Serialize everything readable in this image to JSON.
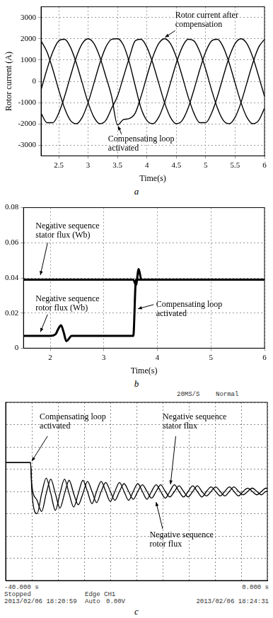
{
  "chart_data": [
    {
      "type": "line",
      "label": "a",
      "x_label": "Time(s)",
      "y_label": "Rotor current (A)",
      "x": [
        2.2,
        2.3,
        2.4,
        2.5,
        2.6,
        2.7,
        2.8,
        2.9,
        3,
        3.1,
        3.2,
        3.3,
        3.4,
        3.5,
        3.6,
        3.7,
        3.8,
        3.9,
        4,
        4.1,
        4.2,
        4.3,
        4.4,
        4.5,
        4.6,
        4.7,
        4.8,
        4.9,
        5,
        5.1,
        5.2,
        5.3,
        5.4,
        5.5,
        5.6,
        5.7,
        5.8,
        5.9,
        6
      ],
      "xlim": [
        2.2,
        6
      ],
      "xticks": [
        2.5,
        3,
        3.5,
        4,
        4.5,
        5,
        5.5,
        6
      ],
      "ylim": [
        -3500,
        3500
      ],
      "yticks": [
        -3000,
        -2000,
        -1000,
        0,
        1000,
        2000,
        3000
      ],
      "grid": true,
      "series": [
        {
          "color": "#000000",
          "values": [
            -1498,
            -1942,
            -1942,
            -1496,
            -710,
            240,
            1136,
            1770,
            2000,
            1770,
            1136,
            240,
            -710,
            -2050,
            -1800,
            -1750,
            -1500,
            -710,
            240,
            1136,
            1770,
            2000,
            1770,
            1136,
            240,
            -710,
            -1498,
            -1942,
            -1942,
            -1496,
            -710,
            240,
            1136,
            1770,
            2000,
            1770,
            1136,
            240,
            -710
          ]
        },
        {
          "color": "#000000",
          "values": [
            -398,
            558,
            1386,
            1898,
            1974,
            1600,
            858,
            -80,
            -1000,
            -1690,
            -1994,
            -1840,
            -1264,
            -700,
            200,
            1100,
            1898,
            1974,
            1600,
            858,
            -80,
            -1000,
            -1690,
            -1994,
            -1840,
            -1264,
            -398,
            558,
            1386,
            1898,
            1974,
            1600,
            858,
            -80,
            -1000,
            -1690,
            -1994,
            -1840,
            -1264
          ]
        },
        {
          "color": "#000000",
          "values": [
            1896,
            1384,
            556,
            -402,
            -1264,
            -1840,
            -1994,
            -1690,
            -1000,
            -80,
            858,
            1600,
            1974,
            2000,
            1700,
            900,
            -200,
            -1264,
            -1840,
            -1994,
            -1690,
            -1000,
            -80,
            858,
            1600,
            1974,
            1896,
            1384,
            556,
            -402,
            -1264,
            -1840,
            -1994,
            -1690,
            -1000,
            -80,
            858,
            1600,
            1974
          ]
        }
      ],
      "annotations": [
        "Rotor current after compensation",
        "Compensating loop activated"
      ]
    },
    {
      "type": "line",
      "label": "b",
      "x_label": "Time(s)",
      "x": [
        1.5,
        2.0,
        2.1,
        2.15,
        2.2,
        2.25,
        2.3,
        2.4,
        3.0,
        3.5,
        3.55,
        3.6,
        3.65,
        3.7,
        3.8,
        4.0,
        5.0,
        6.0
      ],
      "xlim": [
        1.5,
        6
      ],
      "xticks": [
        2,
        3,
        4,
        5,
        6
      ],
      "ylim": [
        0,
        0.08
      ],
      "yticks": [
        0,
        0.02,
        0.04,
        0.06,
        0.08
      ],
      "grid": true,
      "series": [
        {
          "color": "#000000",
          "values": [
            0.039,
            0.039,
            0.039,
            0.039,
            0.039,
            0.039,
            0.039,
            0.039,
            0.039,
            0.039,
            0.039,
            0.036,
            0.045,
            0.039,
            0.039,
            0.039,
            0.039,
            0.039
          ]
        },
        {
          "color": "#000000",
          "values": [
            0.007,
            0.007,
            0.008,
            0.011,
            0.013,
            0.009,
            0.004,
            0.007,
            0.007,
            0.007,
            0.007,
            0.039,
            0.039,
            0.039,
            0.039,
            0.039,
            0.039,
            0.039
          ]
        }
      ],
      "annotations": [
        "Negative sequence stator flux (Wb)",
        "Negative sequence rotor flux (Wb)",
        "Compensating loop activated"
      ]
    },
    {
      "type": "line",
      "label": "c",
      "x": [
        0,
        0.95,
        1,
        1.2,
        1.375,
        1.55,
        1.725,
        1.9,
        2.075,
        2.25,
        2.425,
        2.6,
        2.775,
        2.95,
        3.125,
        3.3,
        3.475,
        3.65,
        3.825,
        4,
        4.175,
        4.35,
        4.525,
        4.7,
        4.875,
        5.05,
        5.225,
        5.4,
        5.575,
        5.75,
        5.925,
        6.1,
        6.275,
        6.45,
        6.625,
        6.8,
        6.975,
        7.15,
        7.325,
        7.5,
        7.675,
        7.85,
        8.025,
        8.2,
        8.375,
        8.55,
        8.725,
        8.9,
        9.075,
        9.25,
        9.425,
        9.6,
        9.775,
        9.95,
        10
      ],
      "xlim": [
        0,
        10
      ],
      "xticks": [
        0,
        1,
        2,
        3,
        4,
        5,
        6,
        7,
        8,
        9,
        10
      ],
      "ylim": [
        -4,
        4
      ],
      "yticks": [
        -4,
        -3,
        -2,
        -1,
        0,
        1,
        2,
        3,
        4
      ],
      "grid": true,
      "tick_labels": false,
      "series": [
        {
          "color": "#000000",
          "values": [
            1.3,
            1.3,
            0,
            -1,
            -0.1,
            0.6,
            -0.1,
            -0.85,
            -0.1,
            0.55,
            -0.1,
            -0.7,
            -0.1,
            0.5,
            0,
            -0.55,
            0,
            0.45,
            0,
            -0.45,
            0,
            0.4,
            0,
            -0.4,
            0,
            0.35,
            0,
            -0.35,
            0,
            0.3,
            0,
            -0.3,
            0,
            0.3,
            0,
            -0.25,
            0,
            0.25,
            0,
            -0.25,
            0,
            0.2,
            0,
            -0.2,
            0,
            0.2,
            0,
            -0.2,
            0,
            0.15,
            0,
            -0.15,
            0,
            0.15,
            0.1
          ]
        },
        {
          "color": "#000000",
          "values": [
            1.3,
            1.3,
            0.3,
            -0.4,
            -0.9,
            -0.1,
            0.55,
            -0.1,
            -0.75,
            -0.1,
            0.5,
            -0.1,
            -0.6,
            -0.1,
            0.45,
            0,
            -0.5,
            0,
            0.4,
            0,
            -0.4,
            0,
            0.35,
            0,
            -0.35,
            0,
            0.3,
            0,
            -0.3,
            0,
            0.3,
            0,
            -0.25,
            0,
            0.25,
            0,
            -0.25,
            0,
            0.25,
            0,
            -0.2,
            0,
            0.2,
            0,
            -0.2,
            0,
            0.2,
            0,
            -0.15,
            0,
            0.15,
            0,
            -0.15,
            0,
            0
          ]
        }
      ],
      "annotations": [
        "Compensating loop activated",
        "Negative sequence stator flux",
        "Negative sequence rotor flux"
      ],
      "status_texts": [
        "20MS/S",
        "Normal",
        "-40.000 s",
        "0.000 s",
        "Stopped",
        "Edge CH1",
        "2013/02/06 18:20:59",
        "Auto",
        "0.00V",
        "2013/02/06 18:24:31"
      ]
    }
  ]
}
